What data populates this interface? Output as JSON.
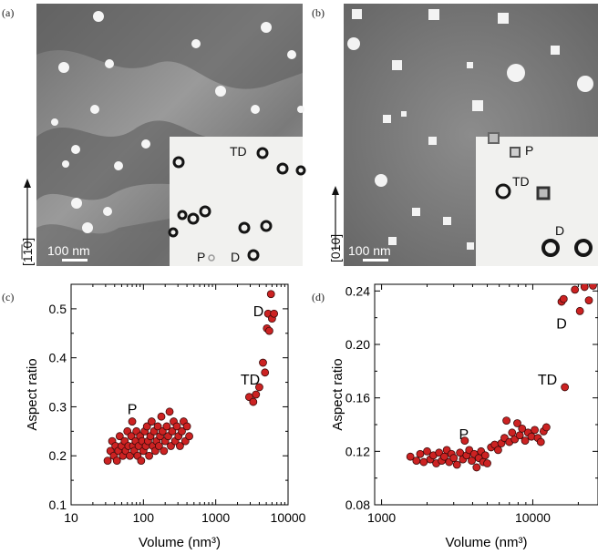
{
  "panels": {
    "a": {
      "label": "(a)",
      "direction": "[1̅1̅0]",
      "direction_text": "[1",
      "direction_bar": "1",
      "direction_end": "0]",
      "scale_bar": "100 nm",
      "inset_labels": [
        "TD",
        "P",
        "D"
      ]
    },
    "b": {
      "label": "(b)",
      "direction": "[010]",
      "scale_bar": "100 nm",
      "inset_labels": [
        "P",
        "TD",
        "D"
      ]
    }
  },
  "chart_data": [
    {
      "label": "(c)",
      "type": "scatter",
      "xlabel": "Volume (nm³)",
      "ylabel": "Aspect ratio",
      "xscale": "log",
      "xlim": [
        10,
        10000
      ],
      "ylim": [
        0.1,
        0.55
      ],
      "x_ticks": [
        10,
        100,
        1000,
        10000
      ],
      "x_tick_labels": [
        "10",
        "100",
        "1000",
        "10000"
      ],
      "y_ticks": [
        0.1,
        0.2,
        0.3,
        0.4,
        0.5
      ],
      "y_tick_labels": [
        "0.1",
        "0.2",
        "0.3",
        "0.4",
        "0.5"
      ],
      "annotations": [
        {
          "text": "P",
          "x": 70,
          "y": 0.285
        },
        {
          "text": "TD",
          "x": 3000,
          "y": 0.345
        },
        {
          "text": "D",
          "x": 3900,
          "y": 0.485
        }
      ],
      "points": [
        [
          32,
          0.19
        ],
        [
          35,
          0.21
        ],
        [
          37,
          0.23
        ],
        [
          39,
          0.2
        ],
        [
          41,
          0.22
        ],
        [
          43,
          0.19
        ],
        [
          45,
          0.21
        ],
        [
          47,
          0.24
        ],
        [
          50,
          0.22
        ],
        [
          52,
          0.2
        ],
        [
          55,
          0.23
        ],
        [
          57,
          0.21
        ],
        [
          60,
          0.25
        ],
        [
          62,
          0.22
        ],
        [
          65,
          0.2
        ],
        [
          68,
          0.24
        ],
        [
          70,
          0.27
        ],
        [
          72,
          0.22
        ],
        [
          75,
          0.21
        ],
        [
          78,
          0.23
        ],
        [
          80,
          0.25
        ],
        [
          83,
          0.2
        ],
        [
          86,
          0.22
        ],
        [
          90,
          0.24
        ],
        [
          93,
          0.19
        ],
        [
          96,
          0.23
        ],
        [
          100,
          0.21
        ],
        [
          104,
          0.25
        ],
        [
          108,
          0.22
        ],
        [
          112,
          0.26
        ],
        [
          116,
          0.23
        ],
        [
          120,
          0.2
        ],
        [
          125,
          0.24
        ],
        [
          130,
          0.27
        ],
        [
          135,
          0.22
        ],
        [
          140,
          0.25
        ],
        [
          146,
          0.21
        ],
        [
          152,
          0.23
        ],
        [
          158,
          0.26
        ],
        [
          164,
          0.22
        ],
        [
          170,
          0.24
        ],
        [
          177,
          0.28
        ],
        [
          184,
          0.25
        ],
        [
          192,
          0.21
        ],
        [
          200,
          0.23
        ],
        [
          210,
          0.26
        ],
        [
          220,
          0.24
        ],
        [
          230,
          0.29
        ],
        [
          240,
          0.22
        ],
        [
          250,
          0.25
        ],
        [
          262,
          0.27
        ],
        [
          275,
          0.23
        ],
        [
          290,
          0.26
        ],
        [
          305,
          0.24
        ],
        [
          320,
          0.22
        ],
        [
          340,
          0.25
        ],
        [
          360,
          0.27
        ],
        [
          380,
          0.23
        ],
        [
          400,
          0.26
        ],
        [
          430,
          0.24
        ],
        [
          2900,
          0.32
        ],
        [
          3300,
          0.31
        ],
        [
          3600,
          0.325
        ],
        [
          4000,
          0.34
        ],
        [
          4500,
          0.39
        ],
        [
          4800,
          0.37
        ],
        [
          5100,
          0.46
        ],
        [
          5300,
          0.49
        ],
        [
          5500,
          0.455
        ],
        [
          5800,
          0.53
        ],
        [
          6000,
          0.48
        ],
        [
          6400,
          0.49
        ]
      ]
    },
    {
      "label": "(d)",
      "type": "scatter",
      "xlabel": "Volume (nm³)",
      "ylabel": "Aspect ratio",
      "xscale": "log",
      "xlim": [
        900,
        27000
      ],
      "ylim": [
        0.08,
        0.245
      ],
      "x_ticks": [
        1000,
        10000
      ],
      "x_tick_labels": [
        "1000",
        "10000"
      ],
      "y_ticks": [
        0.08,
        0.12,
        0.16,
        0.2,
        0.24
      ],
      "y_tick_labels": [
        "0.08",
        "0.12",
        "0.16",
        "0.20",
        "0.24"
      ],
      "annotations": [
        {
          "text": "P",
          "x": 3500,
          "y": 0.129
        },
        {
          "text": "TD",
          "x": 12500,
          "y": 0.17
        },
        {
          "text": "D",
          "x": 15500,
          "y": 0.212
        }
      ],
      "points": [
        [
          1550,
          0.116
        ],
        [
          1700,
          0.113
        ],
        [
          1800,
          0.118
        ],
        [
          1900,
          0.112
        ],
        [
          2000,
          0.12
        ],
        [
          2100,
          0.114
        ],
        [
          2200,
          0.117
        ],
        [
          2300,
          0.111
        ],
        [
          2400,
          0.119
        ],
        [
          2500,
          0.113
        ],
        [
          2600,
          0.116
        ],
        [
          2700,
          0.121
        ],
        [
          2800,
          0.112
        ],
        [
          2900,
          0.118
        ],
        [
          3000,
          0.115
        ],
        [
          3150,
          0.11
        ],
        [
          3300,
          0.119
        ],
        [
          3450,
          0.114
        ],
        [
          3550,
          0.128
        ],
        [
          3650,
          0.117
        ],
        [
          3800,
          0.121
        ],
        [
          3950,
          0.113
        ],
        [
          4100,
          0.118
        ],
        [
          4250,
          0.108
        ],
        [
          4400,
          0.115
        ],
        [
          4550,
          0.12
        ],
        [
          4700,
          0.112
        ],
        [
          4850,
          0.117
        ],
        [
          5000,
          0.111
        ],
        [
          5300,
          0.123
        ],
        [
          5600,
          0.125
        ],
        [
          5900,
          0.121
        ],
        [
          6200,
          0.126
        ],
        [
          6500,
          0.13
        ],
        [
          6700,
          0.143
        ],
        [
          7000,
          0.127
        ],
        [
          7300,
          0.134
        ],
        [
          7600,
          0.129
        ],
        [
          7900,
          0.141
        ],
        [
          8200,
          0.132
        ],
        [
          8500,
          0.137
        ],
        [
          8900,
          0.128
        ],
        [
          9300,
          0.134
        ],
        [
          9800,
          0.131
        ],
        [
          10300,
          0.136
        ],
        [
          10800,
          0.13
        ],
        [
          11300,
          0.127
        ],
        [
          11800,
          0.135
        ],
        [
          12300,
          0.138
        ],
        [
          15500,
          0.232
        ],
        [
          16000,
          0.234
        ],
        [
          16300,
          0.168
        ],
        [
          19000,
          0.241
        ],
        [
          20500,
          0.225
        ],
        [
          22000,
          0.243
        ],
        [
          23500,
          0.233
        ],
        [
          25000,
          0.244
        ]
      ]
    }
  ],
  "colors": {
    "point_fill": "#cc2222",
    "point_stroke": "#3a0a0a",
    "axis": "#000000",
    "inset_bg": "#f1f1ef"
  }
}
